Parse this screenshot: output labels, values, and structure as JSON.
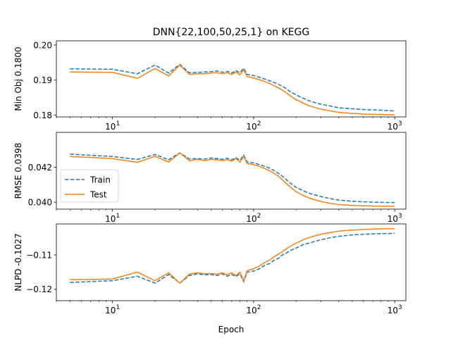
{
  "figure": {
    "title": "DNN{22,100,50,25,1} on KEGG",
    "xlabel": "Epoch"
  },
  "colors": {
    "train": "#1f77b4",
    "test": "#ff7f0e"
  },
  "chart_data": [
    {
      "type": "line",
      "xscale": "log",
      "xlim": [
        4,
        1200
      ],
      "ylim": [
        0.1795,
        0.2012
      ],
      "ylabel": "Min Obj 0.1800",
      "xticks": [
        10,
        100,
        1000
      ],
      "xtick_labels": [
        "10¹",
        "10²",
        "10³"
      ],
      "yticks": [
        0.18,
        0.19,
        0.2
      ],
      "ytick_labels": [
        "0.18",
        "0.19",
        "0.20"
      ],
      "x": [
        5,
        10,
        15,
        20,
        25,
        30,
        35,
        40,
        45,
        50,
        55,
        60,
        65,
        70,
        75,
        80,
        85,
        90,
        100,
        110,
        120,
        130,
        140,
        150,
        160,
        170,
        180,
        200,
        225,
        250,
        300,
        350,
        400,
        500,
        600,
        700,
        800,
        900,
        1000
      ],
      "series": [
        {
          "name": "Train",
          "style": "dashed",
          "values": [
            0.1932,
            0.1931,
            0.1918,
            0.1943,
            0.192,
            0.1945,
            0.1921,
            0.1922,
            0.1923,
            0.1924,
            0.1926,
            0.1922,
            0.1925,
            0.192,
            0.1927,
            0.1921,
            0.1934,
            0.1916,
            0.1913,
            0.1908,
            0.1903,
            0.1898,
            0.1893,
            0.1888,
            0.1882,
            0.1876,
            0.1868,
            0.1858,
            0.1848,
            0.184,
            0.1831,
            0.1826,
            0.1821,
            0.1818,
            0.1816,
            0.1815,
            0.1814,
            0.1813,
            0.1812
          ]
        },
        {
          "name": "Test",
          "style": "solid",
          "values": [
            0.1923,
            0.1922,
            0.1905,
            0.1933,
            0.1912,
            0.1943,
            0.1916,
            0.1918,
            0.1918,
            0.192,
            0.1921,
            0.1918,
            0.1921,
            0.1916,
            0.1923,
            0.1915,
            0.193,
            0.191,
            0.1906,
            0.1901,
            0.1896,
            0.189,
            0.1884,
            0.1878,
            0.1871,
            0.1864,
            0.1856,
            0.1844,
            0.1834,
            0.1826,
            0.1817,
            0.1812,
            0.1808,
            0.1805,
            0.1803,
            0.1802,
            0.1802,
            0.1801,
            0.1801
          ]
        }
      ]
    },
    {
      "type": "line",
      "xscale": "log",
      "xlim": [
        4,
        1200
      ],
      "ylim": [
        0.0396,
        0.044
      ],
      "ylabel": "RMSE 0.0398",
      "xticks": [
        10,
        100,
        1000
      ],
      "xtick_labels": [
        "10¹",
        "10²",
        "10³"
      ],
      "yticks": [
        0.04,
        0.042
      ],
      "ytick_labels": [
        "0.040",
        "0.042"
      ],
      "legend": {
        "position": "lower-left",
        "entries": [
          "Train",
          "Test"
        ]
      },
      "x": [
        5,
        10,
        15,
        20,
        25,
        30,
        35,
        40,
        45,
        50,
        55,
        60,
        65,
        70,
        75,
        80,
        85,
        90,
        100,
        110,
        120,
        130,
        140,
        150,
        160,
        170,
        180,
        200,
        225,
        250,
        300,
        350,
        400,
        500,
        600,
        700,
        800,
        900,
        1000
      ],
      "series": [
        {
          "name": "Train",
          "style": "dashed",
          "values": [
            0.04275,
            0.04262,
            0.04245,
            0.04273,
            0.04243,
            0.04283,
            0.04248,
            0.0425,
            0.04247,
            0.04253,
            0.0425,
            0.04246,
            0.04252,
            0.04243,
            0.04255,
            0.0424,
            0.0427,
            0.0423,
            0.04225,
            0.04215,
            0.04205,
            0.04195,
            0.0418,
            0.04165,
            0.04148,
            0.0413,
            0.04112,
            0.04085,
            0.04065,
            0.0405,
            0.04032,
            0.0402,
            0.04012,
            0.04005,
            0.04002,
            0.04,
            0.03999,
            0.03998,
            0.03998
          ]
        },
        {
          "name": "Test",
          "style": "solid",
          "values": [
            0.04262,
            0.0425,
            0.04228,
            0.04263,
            0.0423,
            0.04282,
            0.04238,
            0.04245,
            0.04238,
            0.04245,
            0.04243,
            0.04238,
            0.04244,
            0.04235,
            0.0425,
            0.0423,
            0.04262,
            0.04222,
            0.04215,
            0.04205,
            0.04193,
            0.0418,
            0.04165,
            0.04148,
            0.04128,
            0.04108,
            0.0409,
            0.0406,
            0.04038,
            0.04022,
            0.04004,
            0.03993,
            0.03986,
            0.03981,
            0.03979,
            0.03978,
            0.03977,
            0.03977,
            0.03977
          ]
        }
      ]
    },
    {
      "type": "line",
      "xscale": "log",
      "xlim": [
        4,
        1200
      ],
      "ylim": [
        -0.1233,
        -0.101
      ],
      "ylabel": "NLPD -0.1027",
      "xticks": [
        10,
        100,
        1000
      ],
      "xtick_labels": [
        "10¹",
        "10²",
        "10³"
      ],
      "yticks": [
        -0.12,
        -0.11
      ],
      "ytick_labels": [
        "−0.12",
        "−0.11"
      ],
      "x": [
        5,
        10,
        15,
        20,
        25,
        30,
        35,
        40,
        45,
        50,
        55,
        60,
        65,
        70,
        75,
        80,
        85,
        90,
        100,
        110,
        120,
        130,
        140,
        150,
        160,
        170,
        180,
        200,
        225,
        250,
        300,
        350,
        400,
        500,
        600,
        700,
        800,
        900,
        1000
      ],
      "series": [
        {
          "name": "Train",
          "style": "dashed",
          "values": [
            -0.118,
            -0.1175,
            -0.1162,
            -0.1182,
            -0.1157,
            -0.1182,
            -0.116,
            -0.1155,
            -0.1158,
            -0.1157,
            -0.116,
            -0.1155,
            -0.1162,
            -0.1157,
            -0.1163,
            -0.1155,
            -0.1178,
            -0.115,
            -0.1147,
            -0.114,
            -0.113,
            -0.1125,
            -0.1115,
            -0.111,
            -0.11,
            -0.1095,
            -0.1088,
            -0.108,
            -0.107,
            -0.1065,
            -0.1056,
            -0.105,
            -0.1046,
            -0.1042,
            -0.104,
            -0.1039,
            -0.1038,
            -0.1038,
            -0.1037
          ]
        },
        {
          "name": "Test",
          "style": "solid",
          "values": [
            -0.1172,
            -0.117,
            -0.115,
            -0.1175,
            -0.1152,
            -0.1182,
            -0.1156,
            -0.1152,
            -0.1155,
            -0.1154,
            -0.1156,
            -0.1152,
            -0.1158,
            -0.1152,
            -0.116,
            -0.115,
            -0.1175,
            -0.1146,
            -0.114,
            -0.1132,
            -0.1122,
            -0.1115,
            -0.1105,
            -0.1098,
            -0.109,
            -0.1083,
            -0.1076,
            -0.1066,
            -0.1056,
            -0.1049,
            -0.104,
            -0.1035,
            -0.1031,
            -0.1028,
            -0.1026,
            -0.1025,
            -0.1024,
            -0.1024,
            -0.1024
          ]
        }
      ]
    }
  ]
}
